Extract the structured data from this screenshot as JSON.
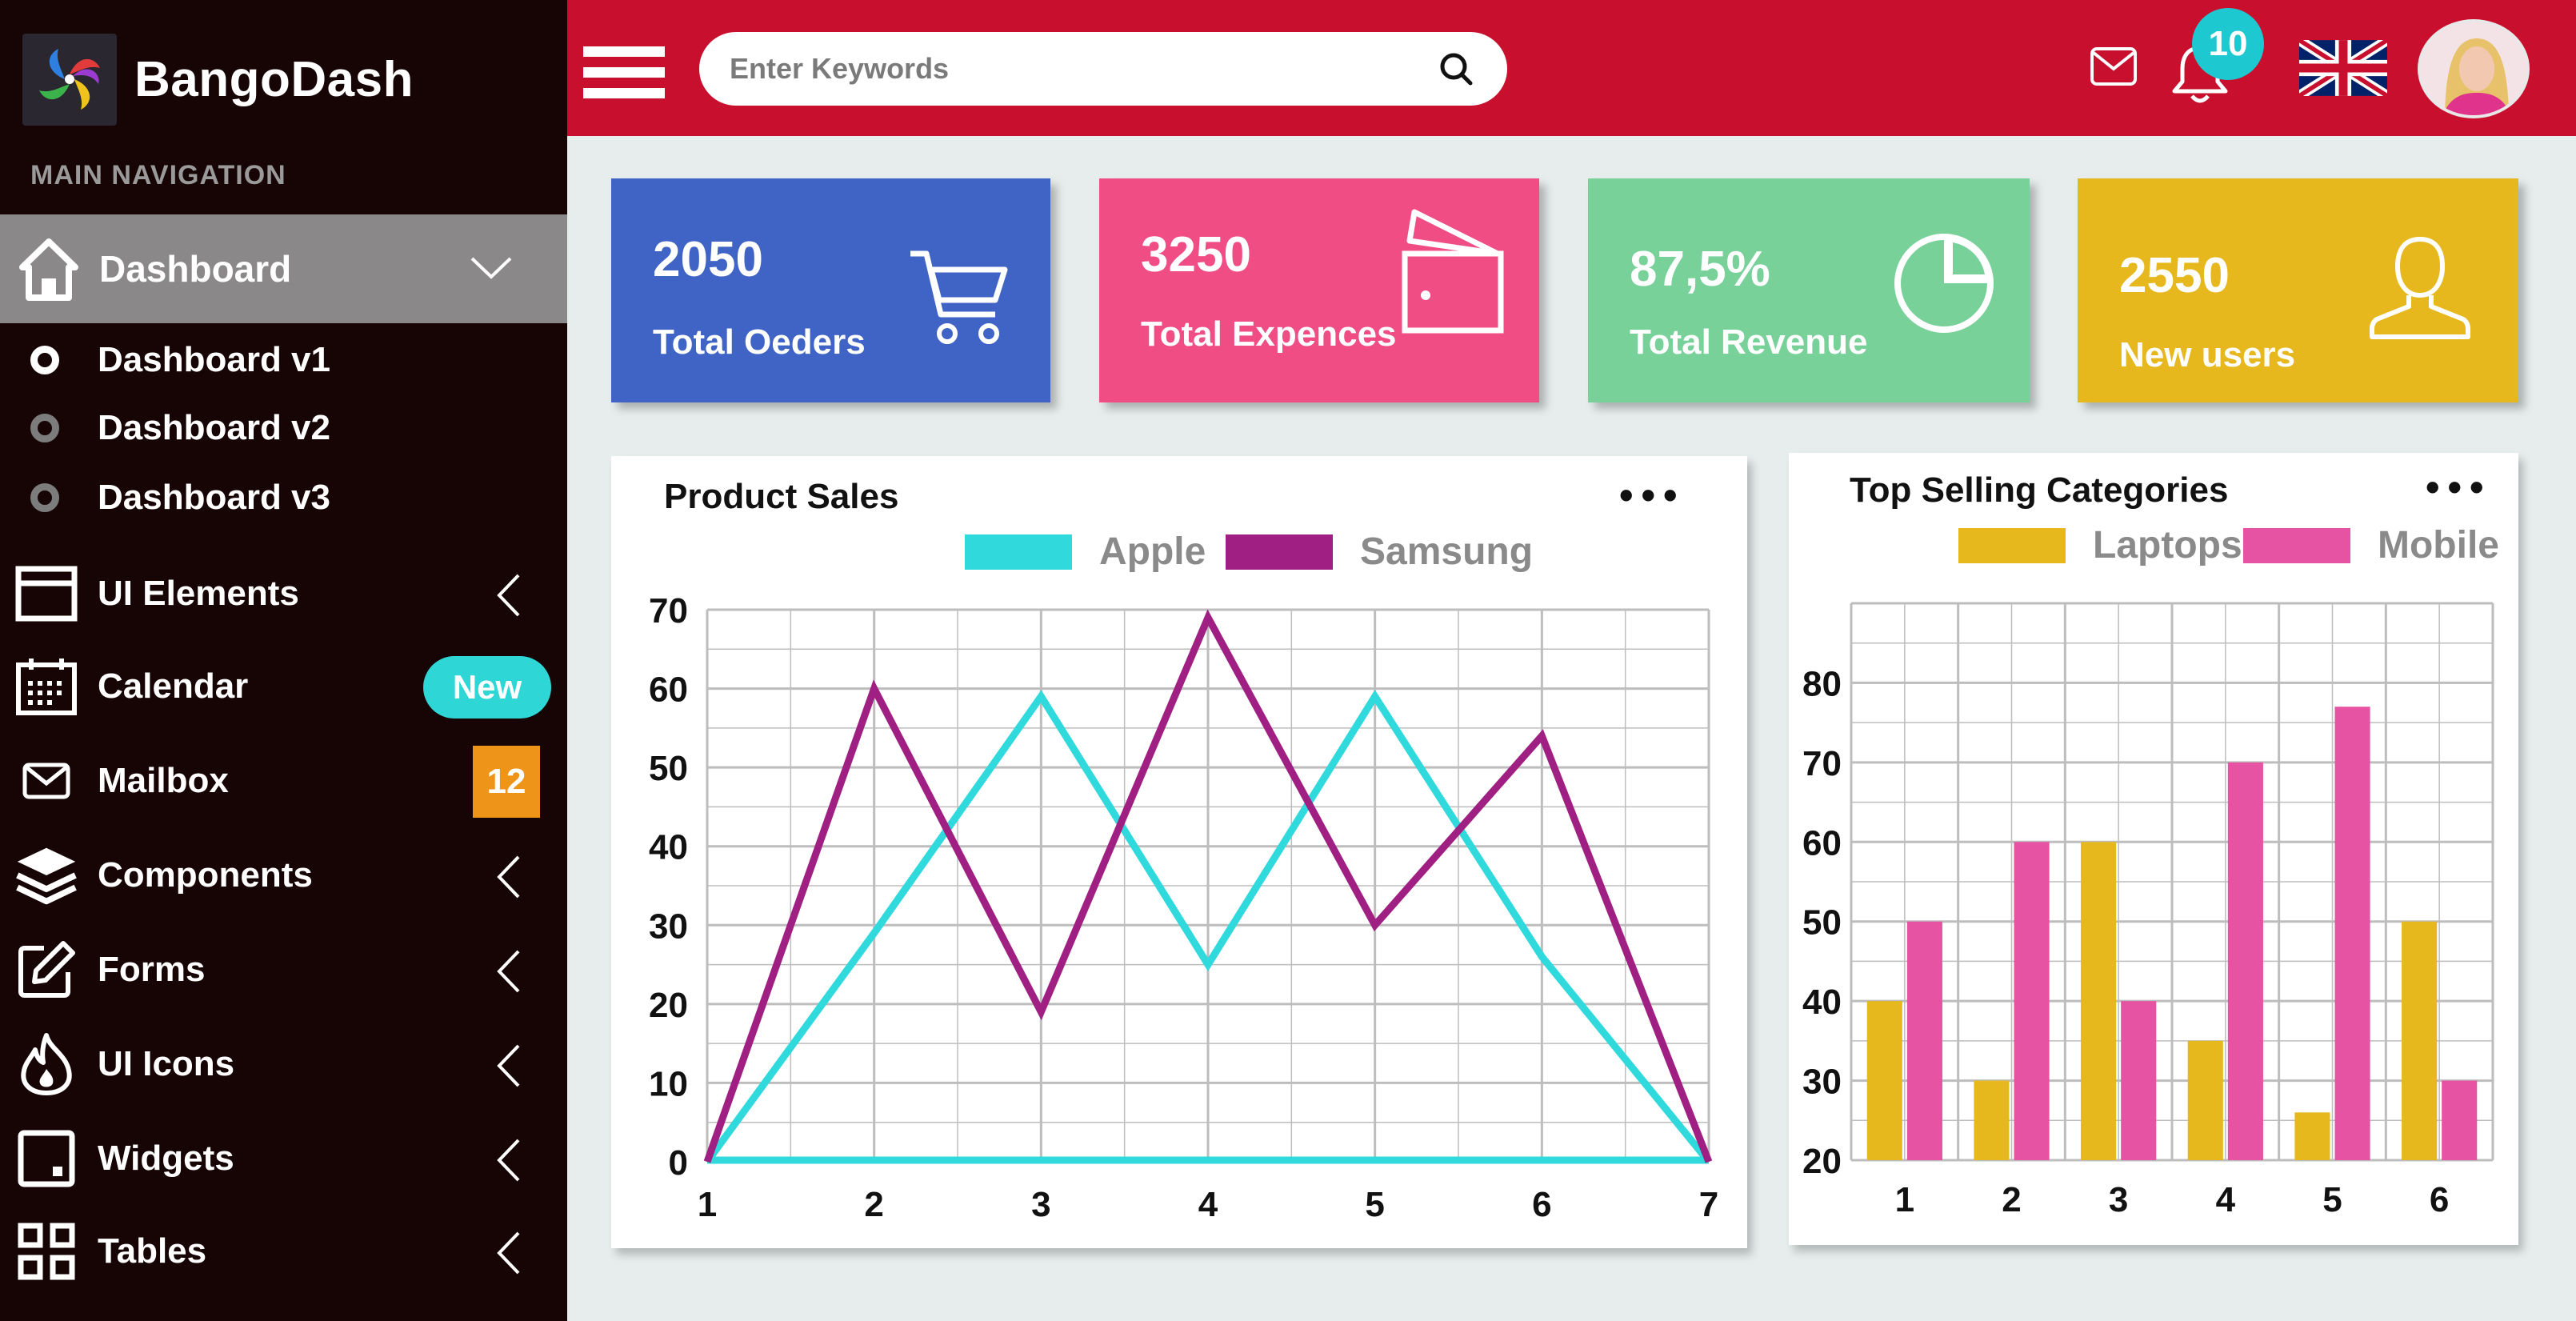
{
  "brand": {
    "name": "BangoDash"
  },
  "sidebar": {
    "heading": "MAIN NAVIGATION",
    "active": {
      "label": "Dashboard"
    },
    "sub_items": [
      {
        "label": "Dashboard  v1",
        "selected": true
      },
      {
        "label": "Dashboard  v2",
        "selected": false
      },
      {
        "label": "Dashboard  v3",
        "selected": false
      }
    ],
    "items": [
      {
        "label": "UI  Elements",
        "icon": "window-icon"
      },
      {
        "label": "Calendar",
        "icon": "calendar-icon",
        "badge": "New"
      },
      {
        "label": "Mailbox",
        "icon": "envelope-icon",
        "badge": "12"
      },
      {
        "label": "Components",
        "icon": "layers-icon"
      },
      {
        "label": "Forms",
        "icon": "edit-icon"
      },
      {
        "label": "UI Icons",
        "icon": "flame-icon"
      },
      {
        "label": "Widgets",
        "icon": "widget-icon"
      },
      {
        "label": "Tables",
        "icon": "grid-icon"
      }
    ]
  },
  "header": {
    "search_placeholder": "Enter Keywords",
    "notification_count": "10",
    "language_flag": "uk-flag-icon"
  },
  "stats": [
    {
      "value": "2050",
      "label": "Total Oeders",
      "color": "#3f64c5",
      "icon": "cart-icon"
    },
    {
      "value": "3250",
      "label": "Total Expences",
      "color": "#f04d84",
      "icon": "wallet-icon"
    },
    {
      "value": "87,5%",
      "label": "Total Revenue",
      "color": "#78d199",
      "icon": "pie-chart-icon"
    },
    {
      "value": "2550",
      "label": "New users",
      "color": "#e6b81e",
      "icon": "user-icon"
    }
  ],
  "chart_data": [
    {
      "type": "line",
      "title": "Product Sales",
      "x": [
        1,
        2,
        3,
        4,
        5,
        6,
        7
      ],
      "ylim": [
        0,
        70
      ],
      "yticks": [
        0,
        10,
        20,
        30,
        40,
        50,
        60,
        70
      ],
      "grid": true,
      "legend": "top-center",
      "series": [
        {
          "name": "Apple",
          "color": "#2fd9dc",
          "values": [
            0,
            29,
            59,
            25,
            59,
            26,
            0
          ]
        },
        {
          "name": "Samsung",
          "color": "#a01f82",
          "values": [
            0,
            60,
            19,
            69,
            30,
            54,
            0
          ]
        }
      ]
    },
    {
      "type": "bar",
      "title": "Top Selling Categories",
      "categories": [
        "1",
        "2",
        "3",
        "4",
        "5",
        "6"
      ],
      "ylim": [
        20,
        90
      ],
      "yticks": [
        20,
        30,
        40,
        50,
        60,
        70,
        80
      ],
      "grid": true,
      "legend": "top-right",
      "series": [
        {
          "name": "Laptops",
          "color": "#e6b81e",
          "values": [
            40,
            30,
            60,
            35,
            26,
            50
          ]
        },
        {
          "name": "Mobile",
          "color": "#e653a2",
          "values": [
            50,
            60,
            40,
            70,
            77,
            30
          ]
        }
      ]
    }
  ]
}
